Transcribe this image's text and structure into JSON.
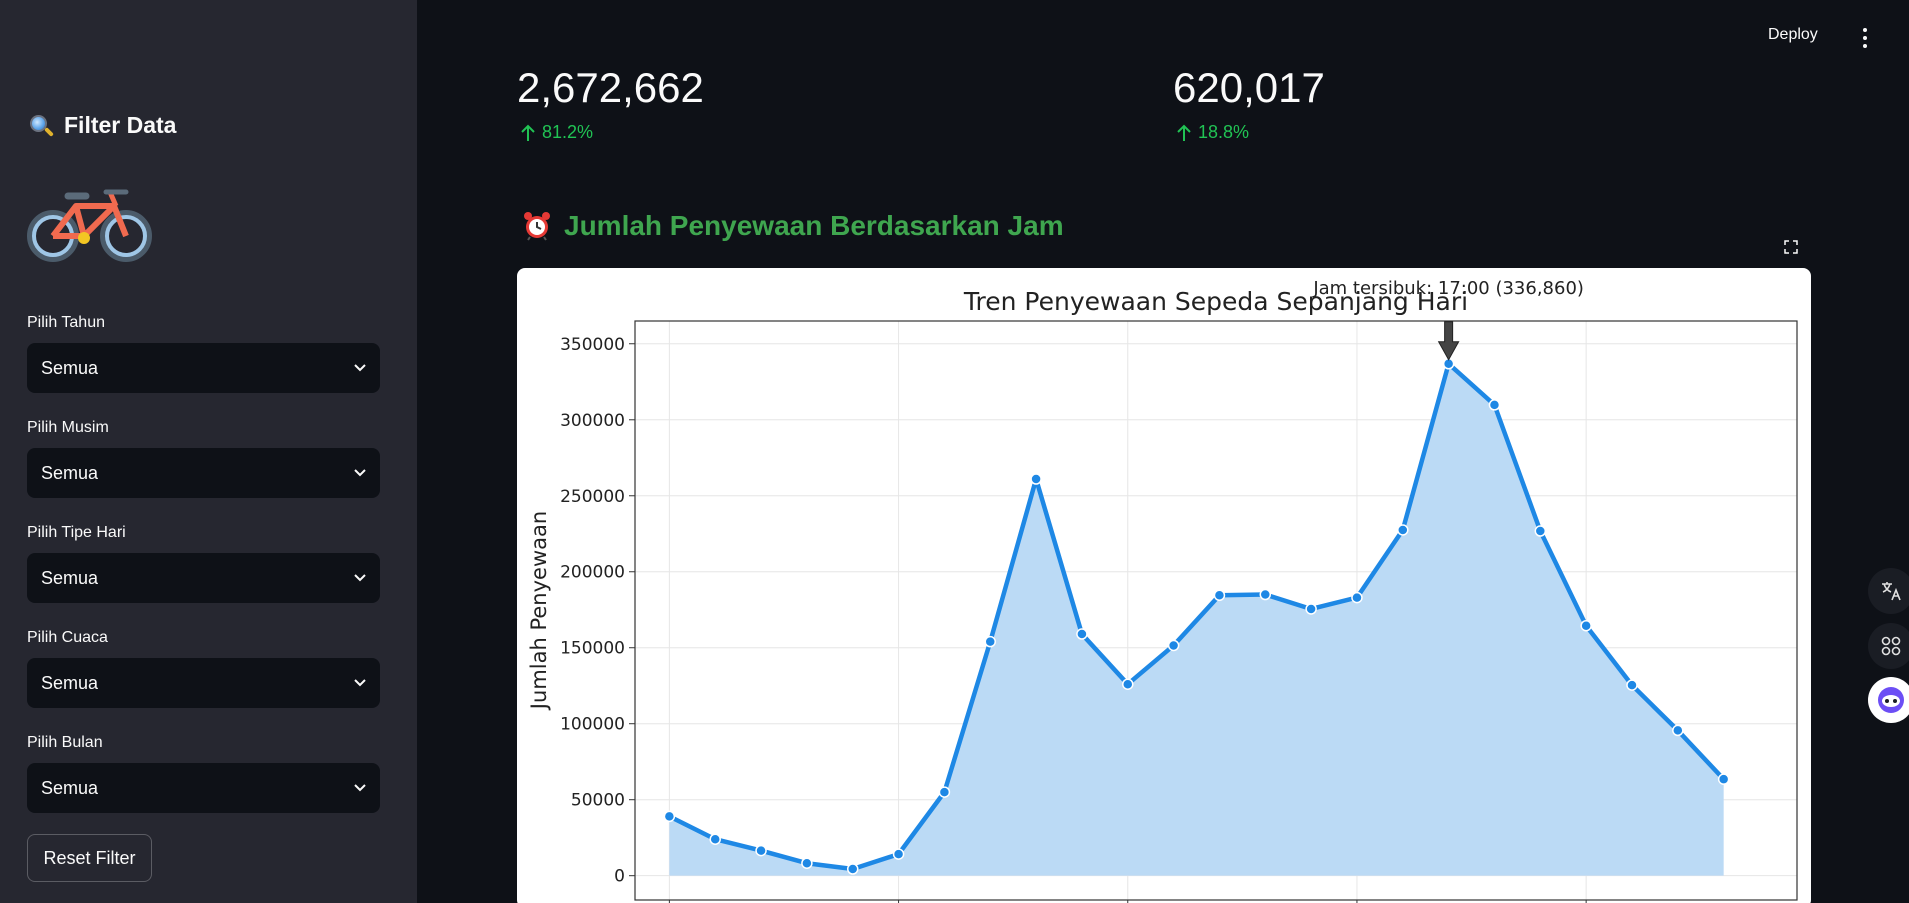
{
  "sidebar": {
    "title": "Filter Data",
    "filters": [
      {
        "label": "Pilih Tahun",
        "value": "Semua"
      },
      {
        "label": "Pilih Musim",
        "value": "Semua"
      },
      {
        "label": "Pilih Tipe Hari",
        "value": "Semua"
      },
      {
        "label": "Pilih Cuaca",
        "value": "Semua"
      },
      {
        "label": "Pilih Bulan",
        "value": "Semua"
      }
    ],
    "reset_label": "Reset Filter"
  },
  "header": {
    "deploy_label": "Deploy"
  },
  "metrics": [
    {
      "value": "2,672,662",
      "delta": "81.2%"
    },
    {
      "value": "620,017",
      "delta": "18.8%"
    }
  ],
  "section": {
    "title": "Jumlah Penyewaan Berdasarkan Jam"
  },
  "colors": {
    "accent_green": "#3fa64f",
    "delta_green": "#21c354",
    "line": "#1e88e5",
    "fill": "#bbdaf5"
  },
  "chart_data": {
    "type": "area",
    "title": "Tren Penyewaan Sepeda Sepanjang Hari",
    "ylabel": "Jumlah Penyewaan",
    "xlabel": "",
    "x": [
      0,
      1,
      2,
      3,
      4,
      5,
      6,
      7,
      8,
      9,
      10,
      11,
      12,
      13,
      14,
      15,
      16,
      17,
      18,
      19,
      20,
      21,
      22,
      23
    ],
    "series": [
      {
        "values": [
          39000,
          24000,
          16500,
          8200,
          4400,
          14200,
          55000,
          154000,
          261000,
          159000,
          126000,
          151500,
          184500,
          185000,
          175500,
          183000,
          227500,
          336860,
          309800,
          226800,
          164500,
          125400,
          95600,
          63500
        ]
      }
    ],
    "ylim": [
      0,
      365000
    ],
    "yticks": [
      "0",
      "50000",
      "100000",
      "150000",
      "200000",
      "250000",
      "300000",
      "350000"
    ],
    "grid": true,
    "annotation": {
      "text": "Jam tersibuk: 17:00 (336,860)",
      "x": 17,
      "y": 336860
    }
  }
}
